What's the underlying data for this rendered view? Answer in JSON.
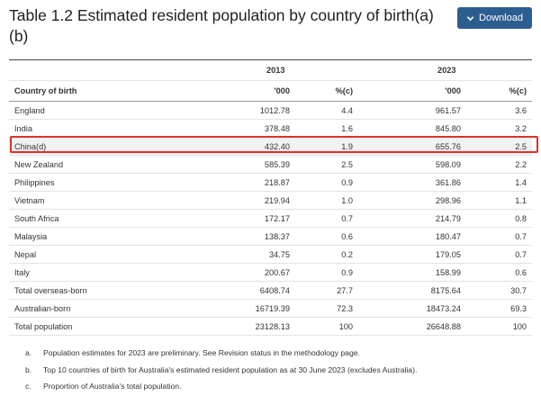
{
  "title": "Table 1.2 Estimated resident population by country of birth(a)(b)",
  "download": {
    "label": "Download",
    "icon": "chevron-down-icon"
  },
  "table": {
    "years": [
      "2013",
      "2023"
    ],
    "headers": [
      "Country of birth",
      "'000",
      "%(c)",
      "'000",
      "%(c)"
    ],
    "rows": [
      [
        "England",
        "1012.78",
        "4.4",
        "961.57",
        "3.6"
      ],
      [
        "India",
        "378.48",
        "1.6",
        "845.80",
        "3.2"
      ],
      [
        "China(d)",
        "432.40",
        "1.9",
        "655.76",
        "2.5"
      ],
      [
        "New Zealand",
        "585.39",
        "2.5",
        "598.09",
        "2.2"
      ],
      [
        "Philippines",
        "218.87",
        "0.9",
        "361.86",
        "1.4"
      ],
      [
        "Vietnam",
        "219.94",
        "1.0",
        "298.96",
        "1.1"
      ],
      [
        "South Africa",
        "172.17",
        "0.7",
        "214.79",
        "0.8"
      ],
      [
        "Malaysia",
        "138.37",
        "0.6",
        "180.47",
        "0.7"
      ],
      [
        "Nepal",
        "34.75",
        "0.2",
        "179.05",
        "0.7"
      ],
      [
        "Italy",
        "200.67",
        "0.9",
        "158.99",
        "0.6"
      ],
      [
        "Total overseas-born",
        "6408.74",
        "27.7",
        "8175.64",
        "30.7"
      ],
      [
        "Australian-born",
        "16719.39",
        "72.3",
        "18473.24",
        "69.3"
      ],
      [
        "Total population",
        "23128.13",
        "100",
        "26648.88",
        "100"
      ]
    ],
    "highlighted_row": "China(d)",
    "highlight_color": "#e0302b"
  },
  "notes": [
    {
      "marker": "a.",
      "text": "Population estimates for 2023 are preliminary. See Revision status in the methodology page."
    },
    {
      "marker": "b.",
      "text": "Top 10 countries of birth for Australia's estimated resident population as at 30 June 2023 (excludes Australia)."
    },
    {
      "marker": "c.",
      "text": "Proportion of Australia's total population."
    }
  ]
}
